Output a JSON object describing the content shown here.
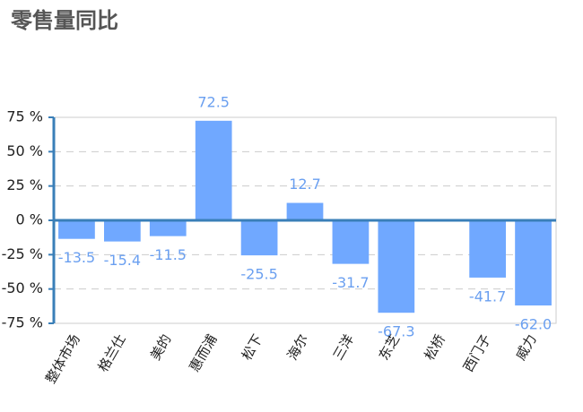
{
  "chart_data": {
    "type": "bar",
    "title": "零售量同比",
    "categories": [
      "整体市场",
      "格兰仕",
      "美的",
      "惠而浦",
      "松下",
      "海尔",
      "三洋",
      "东芝",
      "松桥",
      "西门子",
      "威力"
    ],
    "values": [
      -13.5,
      -15.4,
      -11.5,
      72.5,
      -25.5,
      12.7,
      -31.7,
      -67.3,
      null,
      -41.7,
      -62.0
    ],
    "value_labels": [
      "-13.5",
      "-15.4",
      "-11.5",
      "72.5",
      "-25.5",
      "12.7",
      "-31.7",
      "-67.3",
      null,
      "-41.7",
      "-62.0"
    ],
    "color": "#70a8ff",
    "ylim": [
      -75,
      75
    ],
    "yticks": [
      {
        "value": -75,
        "label": "-75 %"
      },
      {
        "value": -50,
        "label": "-50 %"
      },
      {
        "value": -25,
        "label": "-25 %"
      },
      {
        "value": 0,
        "label": "0 %"
      },
      {
        "value": 25,
        "label": "25 %"
      },
      {
        "value": 50,
        "label": "50 %"
      },
      {
        "value": 75,
        "label": "75 %"
      }
    ],
    "grid": true
  }
}
